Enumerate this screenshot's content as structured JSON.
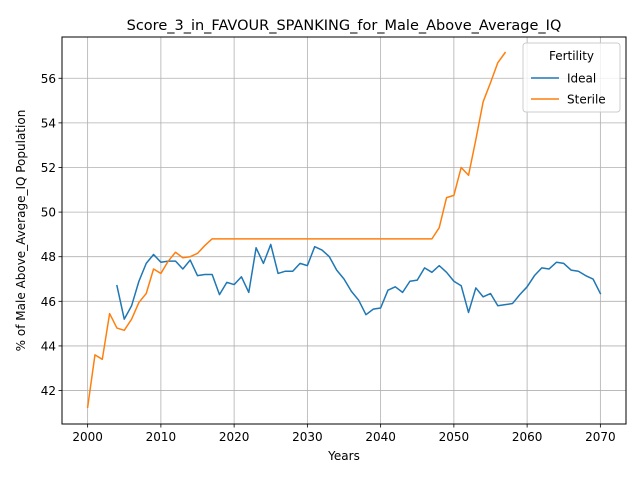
{
  "chart_data": {
    "type": "line",
    "title": "Score_3_in_FAVOUR_SPANKING_for_Male_Above_Average_IQ",
    "xlabel": "Years",
    "ylabel": "% of Male Above_Average_IQ Population",
    "xlim": [
      1996.5,
      2073.5
    ],
    "ylim": [
      40.5,
      57.85
    ],
    "xticks": [
      2000,
      2010,
      2020,
      2030,
      2040,
      2050,
      2060,
      2070
    ],
    "yticks": [
      42,
      44,
      46,
      48,
      50,
      52,
      54,
      56
    ],
    "grid": true,
    "legend": {
      "title": "Fertility",
      "position": "top-right"
    },
    "series": [
      {
        "name": "Ideal",
        "color": "#1f77b4",
        "x": [
          2004,
          2005,
          2006,
          2007,
          2008,
          2009,
          2010,
          2011,
          2012,
          2013,
          2014,
          2015,
          2016,
          2017,
          2018,
          2019,
          2020,
          2021,
          2022,
          2023,
          2024,
          2025,
          2026,
          2027,
          2028,
          2029,
          2030,
          2031,
          2032,
          2033,
          2034,
          2035,
          2036,
          2037,
          2038,
          2039,
          2040,
          2041,
          2042,
          2043,
          2044,
          2045,
          2046,
          2047,
          2048,
          2049,
          2050,
          2051,
          2052,
          2053,
          2054,
          2055,
          2056,
          2057,
          2058,
          2059,
          2060,
          2061,
          2062,
          2063,
          2064,
          2065,
          2066,
          2067,
          2068,
          2069,
          2070
        ],
        "y": [
          46.7,
          45.2,
          45.8,
          46.9,
          47.7,
          48.1,
          47.75,
          47.8,
          47.8,
          47.45,
          47.85,
          47.15,
          47.2,
          47.2,
          46.3,
          46.85,
          46.75,
          47.1,
          46.4,
          48.4,
          47.7,
          48.55,
          47.25,
          47.35,
          47.35,
          47.7,
          47.6,
          48.45,
          48.3,
          48.0,
          47.4,
          47.0,
          46.45,
          46.05,
          45.4,
          45.65,
          45.7,
          46.5,
          46.65,
          46.4,
          46.9,
          46.95,
          47.5,
          47.3,
          47.6,
          47.3,
          46.9,
          46.7,
          45.5,
          46.6,
          46.2,
          46.35,
          45.8,
          45.85,
          45.9,
          46.3,
          46.65,
          47.15,
          47.5,
          47.45,
          47.75,
          47.7,
          47.4,
          47.35,
          47.15,
          47.0,
          46.35
        ]
      },
      {
        "name": "Sterile",
        "color": "#ff7f0e",
        "x": [
          2000,
          2001,
          2002,
          2003,
          2004,
          2005,
          2006,
          2007,
          2008,
          2009,
          2010,
          2011,
          2012,
          2013,
          2014,
          2015,
          2016,
          2017,
          2018,
          2019,
          2020,
          2021,
          2022,
          2023,
          2024,
          2025,
          2026,
          2027,
          2028,
          2029,
          2030,
          2031,
          2032,
          2033,
          2034,
          2035,
          2036,
          2037,
          2038,
          2039,
          2040,
          2041,
          2042,
          2043,
          2044,
          2045,
          2046,
          2047,
          2048,
          2049,
          2050,
          2051,
          2052,
          2053,
          2054,
          2055,
          2056,
          2057
        ],
        "y": [
          41.25,
          43.6,
          43.4,
          45.45,
          44.8,
          44.7,
          45.2,
          45.95,
          46.35,
          47.45,
          47.25,
          47.8,
          48.2,
          47.95,
          48.0,
          48.15,
          48.5,
          48.8,
          48.8,
          48.8,
          48.8,
          48.8,
          48.8,
          48.8,
          48.8,
          48.8,
          48.8,
          48.8,
          48.8,
          48.8,
          48.8,
          48.8,
          48.8,
          48.8,
          48.8,
          48.8,
          48.8,
          48.8,
          48.8,
          48.8,
          48.8,
          48.8,
          48.8,
          48.8,
          48.8,
          48.8,
          48.8,
          48.8,
          49.3,
          50.65,
          50.75,
          52.0,
          51.65,
          53.25,
          54.95,
          55.8,
          56.7,
          57.15
        ]
      }
    ]
  }
}
